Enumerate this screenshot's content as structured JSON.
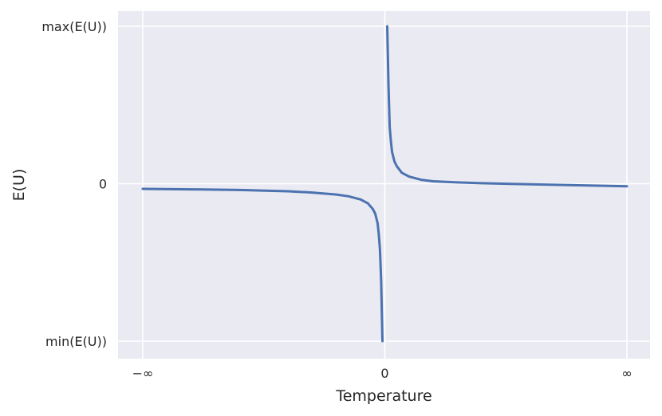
{
  "chart_data": {
    "type": "line",
    "title": "",
    "xlabel": "Temperature",
    "ylabel": "E(U)",
    "xlim": [
      -1,
      1
    ],
    "ylim": [
      -1,
      1
    ],
    "x_ticks": [
      {
        "value": -1,
        "label": "−∞"
      },
      {
        "value": 0,
        "label": "0"
      },
      {
        "value": 1,
        "label": "∞"
      }
    ],
    "y_ticks": [
      {
        "value": -1,
        "label": "min(E(U))"
      },
      {
        "value": 0,
        "label": "0"
      },
      {
        "value": 1,
        "label": "max(E(U))"
      }
    ],
    "grid": true,
    "background": "#eaeaf2",
    "grid_color": "#ffffff",
    "line_color": "#4c72b0",
    "series": [
      {
        "segment": "negative-temperature",
        "x": [
          -1.0,
          -0.8,
          -0.6,
          -0.4,
          -0.3,
          -0.2,
          -0.15,
          -0.1,
          -0.07,
          -0.05,
          -0.04,
          -0.03,
          -0.025,
          -0.02,
          -0.015,
          -0.01
        ],
        "y": [
          -0.033,
          -0.036,
          -0.04,
          -0.048,
          -0.056,
          -0.069,
          -0.08,
          -0.1,
          -0.125,
          -0.16,
          -0.19,
          -0.25,
          -0.32,
          -0.42,
          -0.62,
          -1.0
        ]
      },
      {
        "segment": "positive-temperature",
        "x": [
          0.01,
          0.015,
          0.02,
          0.025,
          0.03,
          0.04,
          0.05,
          0.07,
          0.1,
          0.15,
          0.2,
          0.3,
          0.4,
          0.6,
          0.8,
          1.0
        ],
        "y": [
          1.0,
          0.62,
          0.36,
          0.27,
          0.2,
          0.14,
          0.11,
          0.07,
          0.045,
          0.025,
          0.015,
          0.008,
          0.003,
          -0.004,
          -0.01,
          -0.016
        ]
      }
    ]
  }
}
